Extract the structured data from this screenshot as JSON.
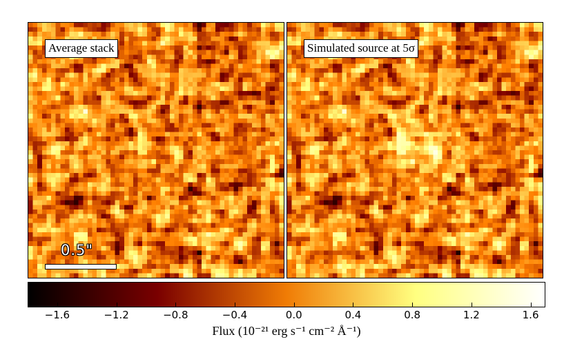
{
  "panels": [
    {
      "label": "Average stack"
    },
    {
      "label": "Simulated source at 5σ"
    }
  ],
  "scale_bar": {
    "label": "0.5\""
  },
  "colorbar": {
    "min": -1.8,
    "max": 1.7,
    "ticks": [
      "−1.6",
      "−1.2",
      "−0.8",
      "−0.4",
      "0.0",
      "0.4",
      "0.8",
      "1.2",
      "1.6"
    ],
    "tick_values": [
      -1.6,
      -1.2,
      -0.8,
      -0.4,
      0.0,
      0.4,
      0.8,
      1.2,
      1.6
    ],
    "label": "Flux (10⁻²¹ erg s⁻¹ cm⁻² Å⁻¹)",
    "colormap": "afmhot",
    "colors": [
      "#000000",
      "#7a0000",
      "#f07c05",
      "#ffff80",
      "#ffffff"
    ]
  }
}
